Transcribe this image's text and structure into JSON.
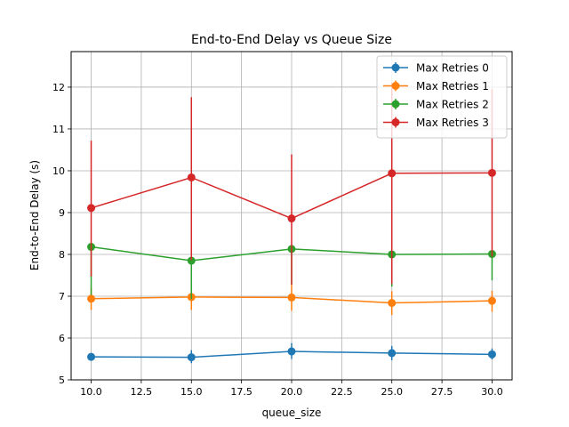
{
  "chart_data": {
    "type": "line",
    "title": "End-to-End Delay vs Queue Size",
    "xlabel": "queue_size",
    "ylabel": "End-to-End Delay (s)",
    "x": [
      10,
      15,
      20,
      25,
      30
    ],
    "xlim": [
      9.0,
      31.0
    ],
    "ylim": [
      5.0,
      12.85
    ],
    "xticks": [
      10.0,
      12.5,
      15.0,
      17.5,
      20.0,
      22.5,
      25.0,
      27.5,
      30.0
    ],
    "xtick_labels": [
      "10.0",
      "12.5",
      "15.0",
      "17.5",
      "20.0",
      "22.5",
      "25.0",
      "27.5",
      "30.0"
    ],
    "yticks": [
      5,
      6,
      7,
      8,
      9,
      10,
      11,
      12
    ],
    "ytick_labels": [
      "5",
      "6",
      "7",
      "8",
      "9",
      "10",
      "11",
      "12"
    ],
    "grid": true,
    "legend_position": "top-right",
    "series": [
      {
        "name": "Max Retries 0",
        "color": "#1f77b4",
        "values": [
          5.55,
          5.54,
          5.68,
          5.64,
          5.61
        ],
        "err_low": [
          5.47,
          5.4,
          5.5,
          5.47,
          5.49
        ],
        "err_high": [
          5.62,
          5.71,
          5.88,
          5.81,
          5.75
        ]
      },
      {
        "name": "Max Retries 1",
        "color": "#ff7f0e",
        "values": [
          6.94,
          6.98,
          6.97,
          6.84,
          6.89
        ],
        "err_low": [
          6.67,
          6.67,
          6.65,
          6.55,
          6.63
        ],
        "err_high": [
          7.2,
          7.25,
          7.27,
          7.12,
          7.13
        ]
      },
      {
        "name": "Max Retries 2",
        "color": "#2ca02c",
        "values": [
          8.18,
          7.85,
          8.13,
          8.0,
          8.01
        ],
        "err_low": [
          7.03,
          6.93,
          7.28,
          7.23,
          7.38
        ],
        "err_high": [
          8.18,
          7.85,
          8.13,
          8.0,
          8.01
        ]
      },
      {
        "name": "Max Retries 3",
        "color": "#d62728",
        "values": [
          9.11,
          9.84,
          8.86,
          9.94,
          9.95
        ],
        "err_low": [
          7.47,
          7.86,
          7.27,
          7.29,
          7.95
        ],
        "err_high": [
          10.72,
          11.76,
          10.39,
          12.1,
          11.95
        ]
      }
    ]
  }
}
